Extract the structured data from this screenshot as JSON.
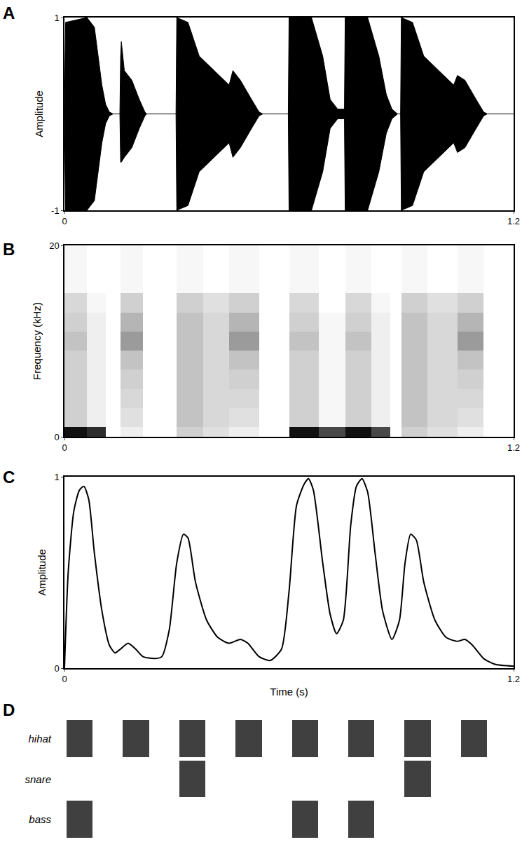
{
  "chart_data": [
    {
      "type": "area",
      "label": "A",
      "y_label": "Amplitude",
      "color": "#000000",
      "x": [
        0,
        0.003,
        0.06,
        0.08,
        0.09,
        0.1,
        0.11,
        0.12,
        0.13,
        0.148,
        0.15,
        0.152,
        0.16,
        0.18,
        0.2,
        0.215,
        0.22,
        0.298,
        0.3,
        0.33,
        0.36,
        0.4,
        0.44,
        0.45,
        0.47,
        0.5,
        0.52,
        0.53,
        0.598,
        0.6,
        0.66,
        0.69,
        0.71,
        0.73,
        0.748,
        0.75,
        0.81,
        0.84,
        0.86,
        0.875,
        0.89,
        0.898,
        0.9,
        0.93,
        0.96,
        1.0,
        1.04,
        1.05,
        1.07,
        1.1,
        1.12,
        1.13,
        1.2
      ],
      "upper": [
        0,
        0.95,
        1,
        0.9,
        0.6,
        0.3,
        0.1,
        0.02,
        0,
        0,
        0.6,
        0.75,
        0.45,
        0.35,
        0.15,
        0.02,
        0,
        0,
        1,
        0.95,
        0.6,
        0.45,
        0.3,
        0.45,
        0.35,
        0.15,
        0.02,
        0,
        0,
        1,
        1,
        0.6,
        0.15,
        0.05,
        0.05,
        1,
        1,
        0.6,
        0.2,
        0.05,
        0,
        0,
        1,
        0.95,
        0.6,
        0.45,
        0.3,
        0.4,
        0.35,
        0.15,
        0.02,
        0,
        0
      ],
      "lower": [
        0,
        -1,
        -1,
        -0.9,
        -0.6,
        -0.3,
        -0.1,
        -0.02,
        0,
        0,
        -0.5,
        -0.5,
        -0.45,
        -0.35,
        -0.15,
        -0.02,
        0,
        0,
        -1,
        -0.95,
        -0.6,
        -0.45,
        -0.3,
        -0.45,
        -0.35,
        -0.15,
        -0.02,
        0,
        0,
        -1,
        -1,
        -0.6,
        -0.15,
        -0.05,
        -0.05,
        -1,
        -1,
        -0.6,
        -0.2,
        -0.05,
        0,
        0,
        -1,
        -0.95,
        -0.6,
        -0.45,
        -0.3,
        -0.4,
        -0.35,
        -0.15,
        -0.02,
        0,
        0
      ],
      "xlim": [
        0,
        1.2
      ],
      "xticks": [
        0,
        1.2
      ],
      "ylim": [
        -1,
        1
      ],
      "yticks": [
        -1,
        1
      ]
    },
    {
      "type": "heatmap",
      "label": "B",
      "y_label": "Frequency (kHz)",
      "time_edges": [
        0,
        0.06,
        0.11,
        0.15,
        0.21,
        0.3,
        0.37,
        0.44,
        0.52,
        0.6,
        0.68,
        0.75,
        0.82,
        0.87,
        0.9,
        0.97,
        1.05,
        1.12,
        1.2
      ],
      "frequency_edges": [
        0,
        1,
        3,
        5,
        7,
        9,
        11,
        13,
        15,
        20
      ],
      "cells_by_time": [
        [
          1,
          0.3,
          0.3,
          0.3,
          0.3,
          0.35,
          0.3,
          0.25,
          0.05
        ],
        [
          0.9,
          0.1,
          0.1,
          0.1,
          0.1,
          0.1,
          0.1,
          0.05,
          0
        ],
        [
          0,
          0,
          0,
          0,
          0,
          0,
          0,
          0,
          0
        ],
        [
          0.1,
          0.2,
          0.25,
          0.3,
          0.35,
          0.5,
          0.4,
          0.3,
          0.05
        ],
        [
          0,
          0,
          0,
          0,
          0,
          0,
          0,
          0,
          0
        ],
        [
          0.3,
          0.35,
          0.35,
          0.35,
          0.35,
          0.35,
          0.35,
          0.3,
          0.05
        ],
        [
          0.2,
          0.25,
          0.25,
          0.25,
          0.25,
          0.25,
          0.25,
          0.2,
          0
        ],
        [
          0.1,
          0.2,
          0.25,
          0.3,
          0.35,
          0.5,
          0.4,
          0.3,
          0.05
        ],
        [
          0,
          0,
          0,
          0,
          0,
          0,
          0,
          0,
          0
        ],
        [
          1,
          0.3,
          0.3,
          0.3,
          0.3,
          0.35,
          0.3,
          0.25,
          0.05
        ],
        [
          0.8,
          0.05,
          0.05,
          0.05,
          0.05,
          0.05,
          0.05,
          0,
          0
        ],
        [
          1,
          0.3,
          0.3,
          0.3,
          0.3,
          0.35,
          0.3,
          0.25,
          0.05
        ],
        [
          0.8,
          0.1,
          0.1,
          0.1,
          0.1,
          0.1,
          0.1,
          0.05,
          0
        ],
        [
          0,
          0,
          0,
          0,
          0,
          0,
          0,
          0,
          0
        ],
        [
          0.3,
          0.35,
          0.35,
          0.35,
          0.35,
          0.35,
          0.35,
          0.3,
          0.05
        ],
        [
          0.2,
          0.25,
          0.25,
          0.25,
          0.25,
          0.25,
          0.25,
          0.2,
          0
        ],
        [
          0.1,
          0.2,
          0.25,
          0.3,
          0.35,
          0.5,
          0.4,
          0.3,
          0.05
        ],
        [
          0,
          0,
          0,
          0,
          0,
          0,
          0,
          0,
          0
        ]
      ],
      "xlim": [
        0,
        1.2
      ],
      "xticks": [
        0,
        1.2
      ],
      "ylim": [
        0,
        20
      ],
      "yticks": [
        0,
        20
      ]
    },
    {
      "type": "line",
      "label": "C",
      "x_label": "Time (s)",
      "y_label": "Amplitude",
      "color": "#000000",
      "line_style": "spline",
      "x": [
        0,
        0.01,
        0.025,
        0.04,
        0.052,
        0.065,
        0.08,
        0.1,
        0.12,
        0.135,
        0.15,
        0.17,
        0.19,
        0.21,
        0.24,
        0.26,
        0.28,
        0.3,
        0.318,
        0.33,
        0.35,
        0.38,
        0.41,
        0.44,
        0.47,
        0.49,
        0.52,
        0.55,
        0.58,
        0.6,
        0.62,
        0.64,
        0.652,
        0.665,
        0.69,
        0.71,
        0.727,
        0.745,
        0.765,
        0.78,
        0.795,
        0.81,
        0.83,
        0.85,
        0.875,
        0.895,
        0.91,
        0.925,
        0.94,
        0.96,
        0.99,
        1.02,
        1.05,
        1.07,
        1.09,
        1.12,
        1.15,
        1.2
      ],
      "values": [
        0,
        0.5,
        0.82,
        0.93,
        0.95,
        0.88,
        0.6,
        0.3,
        0.12,
        0.08,
        0.1,
        0.13,
        0.1,
        0.06,
        0.05,
        0.06,
        0.2,
        0.55,
        0.7,
        0.68,
        0.45,
        0.25,
        0.16,
        0.13,
        0.15,
        0.13,
        0.06,
        0.04,
        0.1,
        0.4,
        0.85,
        0.96,
        0.99,
        0.93,
        0.55,
        0.28,
        0.18,
        0.25,
        0.75,
        0.95,
        0.99,
        0.92,
        0.6,
        0.3,
        0.15,
        0.25,
        0.55,
        0.7,
        0.67,
        0.45,
        0.25,
        0.16,
        0.14,
        0.15,
        0.12,
        0.05,
        0.02,
        0.01
      ],
      "xlim": [
        0,
        1.2
      ],
      "xticks": [
        0,
        1.2
      ],
      "ylim": [
        0,
        1
      ],
      "yticks": [
        0,
        1
      ]
    },
    {
      "type": "grid",
      "label": "D",
      "color": "#404040",
      "tick_labels": "y",
      "rows": [
        {
          "name": "hihat",
          "hits": [
            1,
            1,
            1,
            1,
            1,
            1,
            1,
            1
          ]
        },
        {
          "name": "snare",
          "hits": [
            0,
            0,
            1,
            0,
            0,
            0,
            1,
            0
          ]
        },
        {
          "name": "bass",
          "hits": [
            1,
            0,
            0,
            0,
            1,
            1,
            0,
            0
          ]
        }
      ]
    }
  ]
}
